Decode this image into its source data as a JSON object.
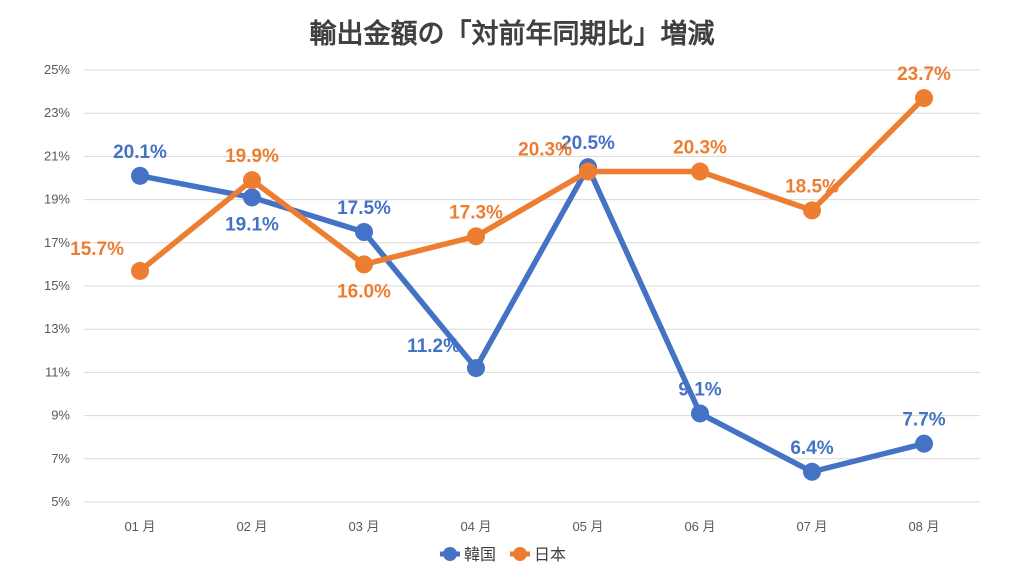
{
  "chart_data": {
    "type": "line",
    "title": "輸出金額の「対前年同期比」増減",
    "categories": [
      "01 月",
      "02 月",
      "03 月",
      "04 月",
      "05 月",
      "06 月",
      "07 月",
      "08 月"
    ],
    "ylim": [
      5,
      25
    ],
    "yticks": [
      5,
      7,
      9,
      11,
      13,
      15,
      17,
      19,
      21,
      23,
      25
    ],
    "ytick_labels": [
      "5%",
      "7%",
      "9%",
      "11%",
      "13%",
      "15%",
      "17%",
      "19%",
      "21%",
      "23%",
      "25%"
    ],
    "grid": true,
    "legend_position": "bottom",
    "series": [
      {
        "name": "韓国",
        "color": "#4472c4",
        "values": [
          20.1,
          19.1,
          17.5,
          11.2,
          20.5,
          9.1,
          6.4,
          7.7
        ],
        "labels": [
          "20.1%",
          "19.1%",
          "17.5%",
          "11.2%",
          "20.5%",
          "9.1%",
          "6.4%",
          "7.7%"
        ],
        "label_pos": [
          "above",
          "below",
          "above",
          "left",
          "above",
          "above",
          "above",
          "above"
        ]
      },
      {
        "name": "日本",
        "color": "#ed7d31",
        "values": [
          15.7,
          19.9,
          16.0,
          17.3,
          20.3,
          20.3,
          18.5,
          23.7
        ],
        "labels": [
          "15.7%",
          "19.9%",
          "16.0%",
          "17.3%",
          "20.3%",
          "20.3%",
          "18.5%",
          "23.7%"
        ],
        "label_pos": [
          "left",
          "above",
          "below",
          "above",
          "left",
          "above",
          "above",
          "above"
        ]
      }
    ]
  }
}
